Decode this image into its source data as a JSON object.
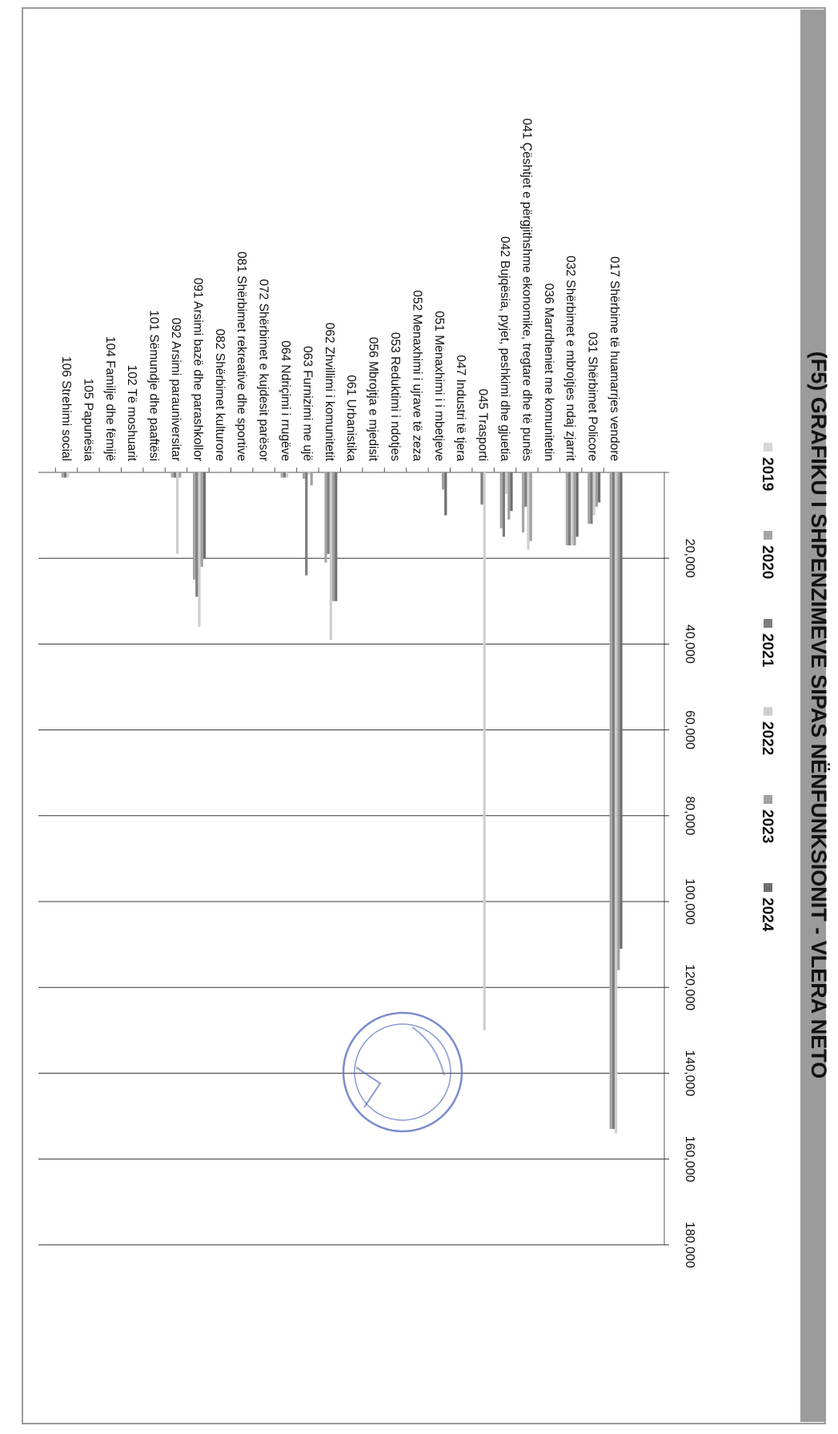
{
  "chart_data": {
    "type": "bar",
    "orientation": "horizontal",
    "title": "(F5) GRAFIKU I SHPENZIMEVE SIPAS NËNFUNKSIONIT - VLERA NETO",
    "xlabel": "",
    "ylabel": "",
    "xlim": [
      0,
      180000
    ],
    "ticks": [
      "20,000",
      "40,000",
      "60,000",
      "80,000",
      "100,000",
      "120,000",
      "140,000",
      "160,000",
      "180,000"
    ],
    "tick_values": [
      20000,
      40000,
      60000,
      80000,
      100000,
      120000,
      140000,
      160000,
      180000
    ],
    "grid": true,
    "legend_position": "bottom",
    "categories": [
      "017 Shërbime të  huamarrjes vendore",
      "031 Shërbimet Policore",
      "032 Shërbimet e mbrojtjes ndaj zjarrit",
      "036 Marrdheniet me komunitetin",
      "041 Çështjet e përgjithshme ekonomike, tregtare dhe të punës",
      "042 Bujqësia, pyjet, peshkimi dhe gjuetia",
      "045 Trasporti",
      "047 Industri të tjera",
      "051 Menaxhimi i i mbetjeve",
      "052 Menaxhimi i ujrave të zeza",
      "053 Reduktimi i ndotjes",
      "056 Mbrojtja e mjedisit",
      "061 Urbanistika",
      "062 Zhvillimi i komunitetit",
      "063 Furnizimi me ujë",
      "064 Ndriçimi i rrugëve",
      "072 Shërbimet e kujdesit parësor",
      "081 Shërbimet rekreative dhe sportive",
      "082 Shërbimet kulturore",
      "091 Arsimi bazë dhe parashkollor",
      "092 Arsimi  parauniversitar",
      "101 Sëmundje dhe paaftësi",
      "102 Të moshuarit",
      "104 Familje dhe fëmijë",
      "105 Papunësia",
      "106 Strehimi social"
    ],
    "series": [
      {
        "name": "2019",
        "color": "#d6d6d6",
        "values": [
          0,
          0,
          0,
          0,
          0,
          0,
          0,
          0,
          0,
          0,
          0,
          0,
          0,
          0,
          0,
          0,
          0,
          0,
          0,
          0,
          0,
          0,
          0,
          0,
          0,
          0
        ]
      },
      {
        "name": "2020",
        "color": "#a6a6a6",
        "values": [
          153000,
          12000,
          17000,
          0,
          14000,
          13000,
          0,
          0,
          0,
          0,
          0,
          0,
          0,
          21000,
          1500,
          1200,
          0,
          0,
          0,
          25000,
          1200,
          0,
          0,
          0,
          0,
          1200
        ]
      },
      {
        "name": "2021",
        "color": "#7d7d7d",
        "values": [
          153000,
          12000,
          17000,
          0,
          8000,
          15000,
          7500,
          0,
          0,
          0,
          0,
          0,
          0,
          19000,
          24000,
          1200,
          0,
          0,
          0,
          29000,
          1200,
          0,
          0,
          0,
          0,
          1200
        ]
      },
      {
        "name": "2022",
        "color": "#cfcfcf",
        "values": [
          154000,
          10000,
          17000,
          0,
          18000,
          5000,
          130000,
          0,
          0,
          0,
          0,
          0,
          0,
          39000,
          500,
          1200,
          0,
          0,
          0,
          36000,
          19000,
          0,
          0,
          0,
          0,
          1200
        ]
      },
      {
        "name": "2023",
        "color": "#a0a0a0",
        "values": [
          116000,
          8000,
          17000,
          0,
          16000,
          11000,
          0,
          0,
          4000,
          0,
          0,
          0,
          0,
          30000,
          3000,
          0,
          0,
          0,
          0,
          22000,
          1200,
          0,
          0,
          0,
          0,
          0
        ]
      },
      {
        "name": "2024",
        "color": "#6e6e6e",
        "values": [
          111000,
          7000,
          15000,
          0,
          0,
          9000,
          0,
          0,
          10000,
          0,
          0,
          0,
          0,
          30000,
          0,
          0,
          0,
          0,
          0,
          20000,
          0,
          0,
          0,
          0,
          0,
          0
        ]
      }
    ]
  }
}
